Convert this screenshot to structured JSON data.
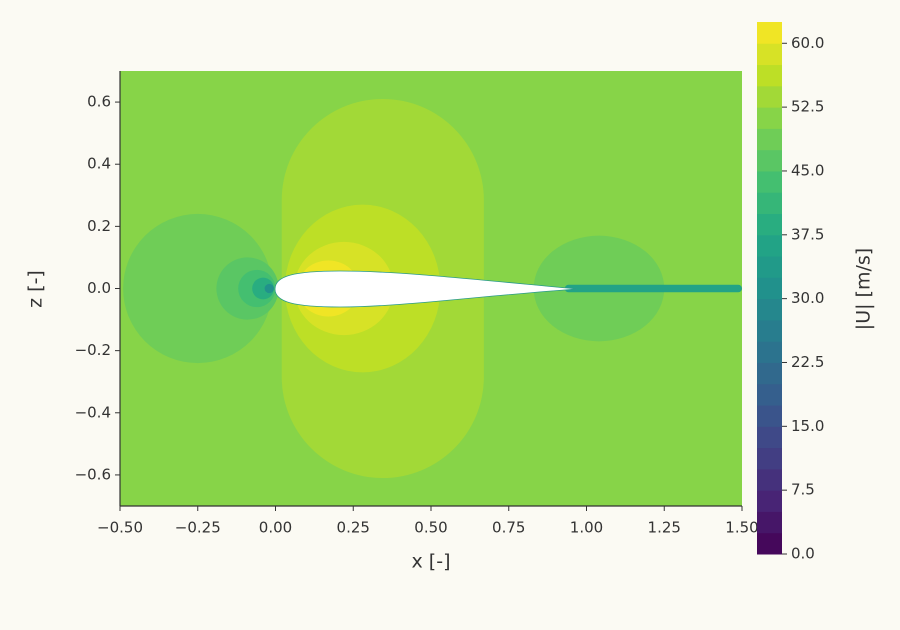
{
  "chart_data": {
    "type": "contour",
    "xlabel": "x [-]",
    "ylabel": "z [-]",
    "xlim": [
      -0.5,
      1.5
    ],
    "ylim": [
      -0.7,
      0.7
    ],
    "xticks": [
      {
        "value": -0.5,
        "label": "−0.50"
      },
      {
        "value": -0.25,
        "label": "−0.25"
      },
      {
        "value": 0,
        "label": "0.00"
      },
      0.25,
      {
        "value": 0.5,
        "label": "0.50"
      },
      0.75,
      {
        "value": 1,
        "label": "1.00"
      },
      1.25,
      {
        "value": 1.5,
        "label": "1.50"
      }
    ],
    "yticks": [
      {
        "value": -0.6,
        "label": "−0.6"
      },
      {
        "value": -0.4,
        "label": "−0.4"
      },
      {
        "value": -0.2,
        "label": "−0.2"
      },
      {
        "value": 0,
        "label": "0.0"
      },
      0.2,
      0.4,
      0.6
    ],
    "colormap": "viridis",
    "levels": [
      0,
      2.5,
      5,
      7.5,
      10,
      12.5,
      15,
      17.5,
      20,
      22.5,
      25,
      27.5,
      30,
      32.5,
      35,
      37.5,
      40,
      42.5,
      45,
      47.5,
      50,
      52.5,
      55,
      57.5,
      60,
      62.5
    ],
    "colorbar": {
      "label": "|U| [m/s]",
      "ticks": [
        {
          "value": 0,
          "label": "0.0"
        },
        7.5,
        {
          "value": 15,
          "label": "15.0"
        },
        22.5,
        {
          "value": 30,
          "label": "30.0"
        },
        37.5,
        {
          "value": 45,
          "label": "45.0"
        },
        52.5,
        {
          "value": 60,
          "label": "60.0"
        }
      ]
    },
    "background": 51,
    "regions": [
      {
        "shape": "stadium",
        "x0": 0.02,
        "x1": 0.67,
        "z0": -0.61,
        "z1": 0.61,
        "value": 54
      },
      {
        "shape": "ellipse",
        "x": 0.28,
        "z": 0,
        "rx": 0.25,
        "rz": 0.27,
        "value": 56.5
      },
      {
        "shape": "ellipse",
        "x": 0.22,
        "z": 0,
        "rx": 0.16,
        "rz": 0.15,
        "value": 59
      },
      {
        "shape": "ellipse",
        "x": 0.17,
        "z": 0,
        "rx": 0.1,
        "rz": 0.09,
        "value": 61
      },
      {
        "shape": "ellipse",
        "x": -0.25,
        "z": 0,
        "rx": 0.24,
        "rz": 0.24,
        "value": 48.5
      },
      {
        "shape": "ellipse",
        "x": -0.09,
        "z": 0,
        "rx": 0.1,
        "rz": 0.1,
        "value": 46
      },
      {
        "shape": "ellipse",
        "x": -0.06,
        "z": 0,
        "rx": 0.06,
        "rz": 0.06,
        "value": 43
      },
      {
        "shape": "ellipse",
        "x": -0.04,
        "z": 0,
        "rx": 0.035,
        "rz": 0.035,
        "value": 38
      },
      {
        "shape": "ellipse",
        "x": -0.02,
        "z": 0,
        "rx": 0.015,
        "rz": 0.015,
        "value": 32
      },
      {
        "shape": "ellipse",
        "x": 1.04,
        "z": 0,
        "rx": 0.21,
        "rz": 0.17,
        "value": 48.5
      },
      {
        "shape": "stadium",
        "x0": 0.93,
        "x1": 1.5,
        "z0": -0.012,
        "z1": 0.012,
        "value": 36
      }
    ]
  }
}
